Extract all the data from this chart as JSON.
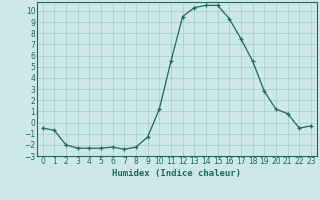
{
  "x": [
    0,
    1,
    2,
    3,
    4,
    5,
    6,
    7,
    8,
    9,
    10,
    11,
    12,
    13,
    14,
    15,
    16,
    17,
    18,
    19,
    20,
    21,
    22,
    23
  ],
  "y": [
    -0.5,
    -0.7,
    -2.0,
    -2.3,
    -2.3,
    -2.3,
    -2.2,
    -2.4,
    -2.2,
    -1.3,
    1.2,
    5.5,
    9.5,
    10.3,
    10.5,
    10.5,
    9.3,
    7.5,
    5.5,
    2.8,
    1.2,
    0.8,
    -0.5,
    -0.3
  ],
  "line_color": "#1a6b5a",
  "marker": "+",
  "bg_color": "#cce8e8",
  "grid_color": "#aacece",
  "xlabel": "Humidex (Indice chaleur)",
  "ylim": [
    -3,
    10.8
  ],
  "xlim": [
    -0.5,
    23.5
  ],
  "yticks": [
    -3,
    -2,
    -1,
    0,
    1,
    2,
    3,
    4,
    5,
    6,
    7,
    8,
    9,
    10
  ],
  "xticks": [
    0,
    1,
    2,
    3,
    4,
    5,
    6,
    7,
    8,
    9,
    10,
    11,
    12,
    13,
    14,
    15,
    16,
    17,
    18,
    19,
    20,
    21,
    22,
    23
  ],
  "tick_label_fontsize": 5.5,
  "xlabel_fontsize": 6.5
}
